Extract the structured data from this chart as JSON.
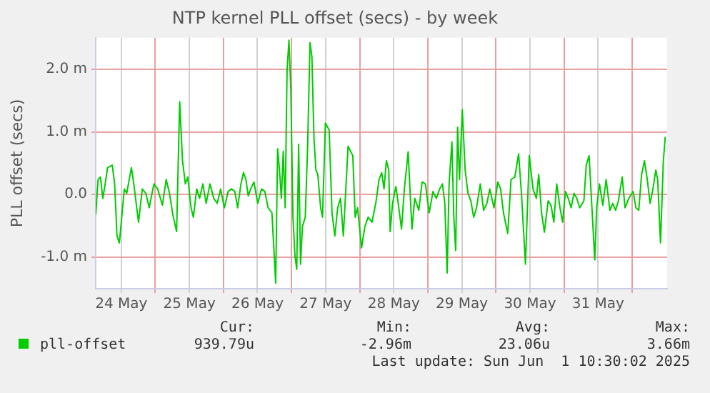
{
  "chart_data": {
    "type": "line",
    "title": "NTP kernel PLL offset (secs) - by week",
    "ylabel": "PLL offset (secs)",
    "xlim": [
      "2025-05-24T03:00",
      "2025-06-01T12:20"
    ],
    "xticks": [
      {
        "value": "2025-05-24T12:00",
        "label": "24 May"
      },
      {
        "value": "2025-05-25T00:00",
        "label": null
      },
      {
        "value": "2025-05-25T12:00",
        "label": "25 May"
      },
      {
        "value": "2025-05-26T00:00",
        "label": null
      },
      {
        "value": "2025-05-26T12:00",
        "label": "26 May"
      },
      {
        "value": "2025-05-27T00:00",
        "label": null
      },
      {
        "value": "2025-05-27T12:00",
        "label": "27 May"
      },
      {
        "value": "2025-05-28T00:00",
        "label": null
      },
      {
        "value": "2025-05-28T12:00",
        "label": "28 May"
      },
      {
        "value": "2025-05-29T00:00",
        "label": null
      },
      {
        "value": "2025-05-29T12:00",
        "label": "29 May"
      },
      {
        "value": "2025-05-30T00:00",
        "label": null
      },
      {
        "value": "2025-05-30T12:00",
        "label": "30 May"
      },
      {
        "value": "2025-05-31T00:00",
        "label": null
      },
      {
        "value": "2025-05-31T12:00",
        "label": "31 May"
      },
      {
        "value": "2025-06-01T00:00",
        "label": null
      }
    ],
    "ylim": [
      -1.5,
      2.5
    ],
    "yticks": [
      {
        "value": -1,
        "label": "-1.0 m"
      },
      {
        "value": 0,
        "label": "0.0"
      },
      {
        "value": 1,
        "label": "1.0 m"
      },
      {
        "value": 2,
        "label": "2.0 m"
      }
    ],
    "grid": true,
    "legend": "bottom",
    "marker": "none",
    "line_style": "solid",
    "annotations": [
      "Cur:",
      "Min:",
      "Avg:",
      "Max:",
      "939.79u",
      "-2.96m",
      "23.06u",
      "3.66m",
      "Last update: Sun Jun  1 10:30:02 2025"
    ],
    "series": [
      {
        "name": "pll-offset",
        "color": "#00cc00",
        "x": [
          "2025-05-24T03:00",
          "2025-05-24T03:50",
          "2025-05-24T04:40",
          "2025-05-24T05:30",
          "2025-05-24T06:20",
          "2025-05-24T07:10",
          "2025-05-24T08:50",
          "2025-05-24T09:40",
          "2025-05-24T10:30",
          "2025-05-24T11:20",
          "2025-05-24T12:10",
          "2025-05-24T13:05",
          "2025-05-24T13:55",
          "2025-05-24T15:35",
          "2025-05-24T16:25",
          "2025-05-24T18:05",
          "2025-05-24T19:25",
          "2025-05-24T20:40",
          "2025-05-24T21:50",
          "2025-05-24T23:30",
          "2025-05-25T00:50",
          "2025-05-25T02:30",
          "2025-05-25T03:50",
          "2025-05-25T05:00",
          "2025-05-25T06:10",
          "2025-05-25T07:30",
          "2025-05-25T08:35",
          "2025-05-25T09:35",
          "2025-05-25T10:35",
          "2025-05-25T11:25",
          "2025-05-25T12:35",
          "2025-05-25T13:25",
          "2025-05-25T14:35",
          "2025-05-25T15:35",
          "2025-05-25T16:45",
          "2025-05-25T17:55",
          "2025-05-25T19:15",
          "2025-05-25T20:35",
          "2025-05-25T21:50",
          "2025-05-25T23:00",
          "2025-05-26T00:20",
          "2025-05-26T01:40",
          "2025-05-26T02:50",
          "2025-05-26T04:00",
          "2025-05-26T05:00",
          "2025-05-26T06:10",
          "2025-05-26T07:05",
          "2025-05-26T07:55",
          "2025-05-26T08:45",
          "2025-05-26T09:35",
          "2025-05-26T10:45",
          "2025-05-26T12:05",
          "2025-05-26T13:25",
          "2025-05-26T14:35",
          "2025-05-26T15:45",
          "2025-05-26T17:05",
          "2025-05-26T18:25",
          "2025-05-26T19:05",
          "2025-05-26T19:45",
          "2025-05-26T20:25",
          "2025-05-26T21:05",
          "2025-05-26T21:45",
          "2025-05-26T22:25",
          "2025-05-26T23:05",
          "2025-05-26T23:45",
          "2025-05-27T00:30",
          "2025-05-27T01:10",
          "2025-05-27T01:50",
          "2025-05-27T02:30",
          "2025-05-27T03:10",
          "2025-05-27T03:50",
          "2025-05-27T04:50",
          "2025-05-27T05:40",
          "2025-05-27T06:30",
          "2025-05-27T07:10",
          "2025-05-27T07:55",
          "2025-05-27T08:35",
          "2025-05-27T09:15",
          "2025-05-27T10:15",
          "2025-05-27T10:55",
          "2025-05-27T11:55",
          "2025-05-27T13:15",
          "2025-05-27T14:15",
          "2025-05-27T15:15",
          "2025-05-27T16:15",
          "2025-05-27T17:15",
          "2025-05-27T18:15",
          "2025-05-27T19:55",
          "2025-05-27T21:35",
          "2025-05-27T22:25",
          "2025-05-27T23:15",
          "2025-05-28T00:40",
          "2025-05-28T01:50",
          "2025-05-28T03:00",
          "2025-05-28T04:20",
          "2025-05-28T05:40",
          "2025-05-28T06:50",
          "2025-05-28T07:45",
          "2025-05-28T08:35",
          "2025-05-28T09:25",
          "2025-05-28T10:15",
          "2025-05-28T10:45",
          "2025-05-28T11:35",
          "2025-05-28T12:45",
          "2025-05-28T13:35",
          "2025-05-28T14:45",
          "2025-05-28T15:45",
          "2025-05-28T17:05",
          "2025-05-28T18:25",
          "2025-05-28T19:25",
          "2025-05-28T20:50",
          "2025-05-28T22:00",
          "2025-05-28T23:10",
          "2025-05-29T00:30",
          "2025-05-29T01:50",
          "2025-05-29T03:00",
          "2025-05-29T04:10",
          "2025-05-29T05:10",
          "2025-05-29T06:00",
          "2025-05-29T06:50",
          "2025-05-29T07:30",
          "2025-05-29T08:30",
          "2025-05-29T09:10",
          "2025-05-29T09:50",
          "2025-05-29T10:30",
          "2025-05-29T11:10",
          "2025-05-29T12:10",
          "2025-05-29T13:10",
          "2025-05-29T14:10",
          "2025-05-29T15:10",
          "2025-05-29T16:10",
          "2025-05-29T17:10",
          "2025-05-29T18:30",
          "2025-05-29T19:40",
          "2025-05-29T20:50",
          "2025-05-29T21:50",
          "2025-05-29T23:20",
          "2025-05-30T00:40",
          "2025-05-30T01:40",
          "2025-05-30T02:40",
          "2025-05-30T04:10",
          "2025-05-30T05:20",
          "2025-05-30T06:40",
          "2025-05-30T08:00",
          "2025-05-30T09:00",
          "2025-05-30T10:25",
          "2025-05-30T11:45",
          "2025-05-30T13:05",
          "2025-05-30T14:15",
          "2025-05-30T15:05",
          "2025-05-30T16:05",
          "2025-05-30T17:05",
          "2025-05-30T18:25",
          "2025-05-30T19:25",
          "2025-05-30T20:25",
          "2025-05-30T21:25",
          "2025-05-30T22:35",
          "2025-05-30T23:30",
          "2025-05-31T00:30",
          "2025-05-31T01:30",
          "2025-05-31T02:30",
          "2025-05-31T03:30",
          "2025-05-31T04:30",
          "2025-05-31T05:30",
          "2025-05-31T07:00",
          "2025-05-31T07:50",
          "2025-05-31T08:50",
          "2025-05-31T09:50",
          "2025-05-31T10:50",
          "2025-05-31T11:30",
          "2025-05-31T12:30",
          "2025-05-31T13:40",
          "2025-05-31T14:50",
          "2025-05-31T16:10",
          "2025-05-31T17:10",
          "2025-05-31T18:10",
          "2025-05-31T19:10",
          "2025-05-31T20:30",
          "2025-05-31T21:30",
          "2025-05-31T22:50",
          "2025-06-01T00:20",
          "2025-06-01T01:20",
          "2025-06-01T02:20",
          "2025-06-01T03:20",
          "2025-06-01T04:20",
          "2025-06-01T05:20",
          "2025-06-01T06:20",
          "2025-06-01T07:20",
          "2025-06-01T08:20",
          "2025-06-01T09:00",
          "2025-06-01T10:00",
          "2025-06-01T11:00",
          "2025-06-01T11:40"
        ],
        "values": [
          -0.32,
          0.24,
          0.28,
          -0.06,
          0.17,
          0.43,
          0.47,
          0.17,
          -0.66,
          -0.77,
          -0.36,
          0.09,
          0.02,
          0.43,
          0.17,
          -0.44,
          0.09,
          0.02,
          -0.21,
          0.17,
          0.09,
          -0.17,
          0.24,
          0.02,
          -0.32,
          -0.59,
          1.48,
          0.54,
          0.17,
          0.28,
          -0.21,
          -0.36,
          0.09,
          -0.06,
          0.17,
          -0.14,
          0.17,
          -0.06,
          -0.14,
          0.09,
          -0.21,
          0.05,
          0.09,
          0.05,
          -0.21,
          0.17,
          0.35,
          0.24,
          -0.02,
          0.09,
          0.2,
          -0.14,
          0.09,
          0.05,
          -0.21,
          -0.29,
          -1.41,
          0.73,
          0.39,
          -0.06,
          0.69,
          -0.21,
          1.97,
          2.46,
          1.67,
          -0.36,
          -0.96,
          -1.19,
          0.8,
          -1.11,
          -0.51,
          -0.36,
          0.77,
          2.42,
          2.2,
          0.88,
          0.39,
          0.32,
          -0.21,
          -0.36,
          1.14,
          1.03,
          -0.29,
          -0.66,
          -0.21,
          -0.06,
          -0.66,
          0.77,
          0.62,
          -0.36,
          -0.21,
          -0.85,
          -0.51,
          -0.36,
          -0.44,
          -0.14,
          0.24,
          0.35,
          0.09,
          0.54,
          0.39,
          -0.59,
          -0.14,
          0.13,
          -0.14,
          -0.55,
          0.09,
          0.68,
          -0.55,
          -0.06,
          -0.25,
          0.2,
          0.17,
          -0.29,
          0.05,
          -0.06,
          0.09,
          0.17,
          -0.14,
          -1.25,
          0.17,
          0.84,
          -0.36,
          -0.89,
          1.07,
          0.24,
          1.35,
          0.39,
          0.02,
          -0.1,
          -0.36,
          -0.21,
          0.17,
          -0.25,
          -0.14,
          0.09,
          -0.21,
          0.2,
          0.09,
          -0.29,
          -0.62,
          0.24,
          0.28,
          0.65,
          0.02,
          -1.11,
          0.62,
          0.09,
          -0.06,
          0.32,
          -0.29,
          -0.6,
          -0.1,
          -0.17,
          -0.44,
          0.17,
          -0.21,
          -0.44,
          0.05,
          -0.06,
          -0.21,
          0.02,
          -0.06,
          -0.21,
          -0.1,
          0.47,
          0.62,
          -0.21,
          -1.04,
          -0.21,
          0.17,
          -0.17,
          0.24,
          -0.25,
          -0.14,
          -0.25,
          -0.1,
          0.28,
          -0.21,
          -0.06,
          0.05,
          -0.21,
          -0.25,
          0.32,
          0.54,
          0.24,
          -0.14,
          0.09,
          0.39,
          0.24,
          -0.77,
          0.54,
          0.92
        ]
      }
    ]
  }
}
